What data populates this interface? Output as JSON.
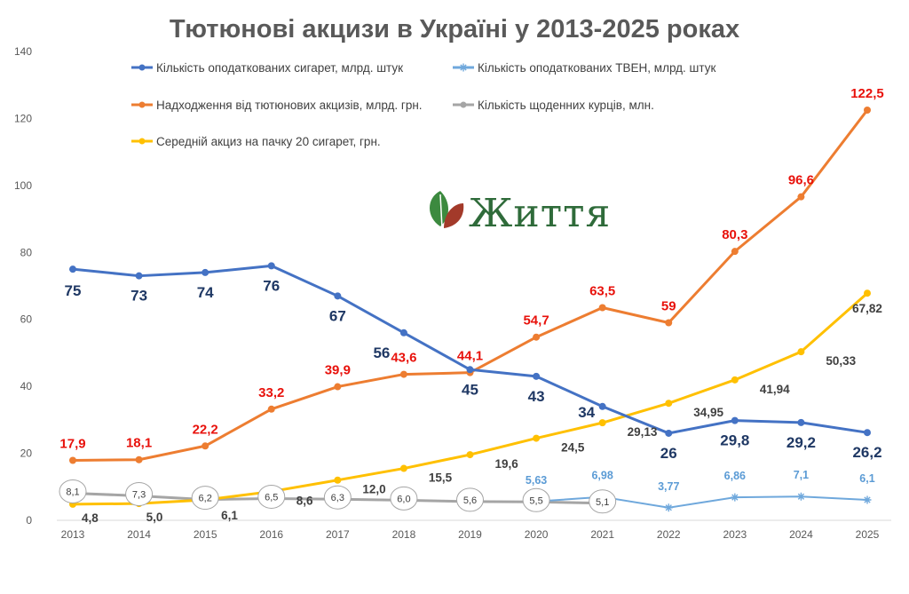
{
  "chart_data": {
    "type": "line",
    "title": "Тютюнові акцизи в Україні у 2013-2025 роках",
    "xlabel": "",
    "ylabel": "",
    "ylim": [
      0,
      140
    ],
    "yticks": [
      0,
      20,
      40,
      60,
      80,
      100,
      120,
      140
    ],
    "categories": [
      "2013",
      "2014",
      "2015",
      "2016",
      "2017",
      "2018",
      "2019",
      "2020",
      "2021",
      "2022",
      "2023",
      "2024",
      "2025"
    ],
    "legend_position": "top-left",
    "grid": false,
    "logo_text": "Життя",
    "series": [
      {
        "name": "Кількість оподаткованих сигарет, млрд. штук",
        "color": "#4472c4",
        "label_color": "#1f3864",
        "marker": "circle",
        "values": [
          75,
          73,
          74,
          76,
          67,
          56,
          45,
          43,
          34,
          26,
          29.8,
          29.2,
          26.2
        ],
        "labels": [
          "75",
          "73",
          "74",
          "76",
          "67",
          "56",
          "45",
          "43",
          "34",
          "26",
          "29,8",
          "29,2",
          "26,2"
        ]
      },
      {
        "name": "Кількість оподаткованих ТВЕН, млрд. штук",
        "color": "#6fa8dc",
        "label_color": "#5b9bd5",
        "marker": "star",
        "values": [
          null,
          null,
          null,
          null,
          null,
          null,
          null,
          5.63,
          6.98,
          3.77,
          6.86,
          7.1,
          6.1
        ],
        "labels": [
          null,
          null,
          null,
          null,
          null,
          null,
          null,
          "5,63",
          "6,98",
          "3,77",
          "6,86",
          "7,1",
          "6,1"
        ]
      },
      {
        "name": "Надходження від тютюнових акцизів, млрд. грн.",
        "color": "#ed7d31",
        "label_color": "#e8120c",
        "marker": "circle",
        "values": [
          17.9,
          18.1,
          22.2,
          33.2,
          39.9,
          43.6,
          44.1,
          54.7,
          63.5,
          59,
          80.3,
          96.6,
          122.5
        ],
        "labels": [
          "17,9",
          "18,1",
          "22,2",
          "33,2",
          "39,9",
          "43,6",
          "44,1",
          "54,7",
          "63,5",
          "59",
          "80,3",
          "96,6",
          "122,5"
        ]
      },
      {
        "name": "Кількість щоденних курців, млн.",
        "color": "#a5a5a5",
        "label_color": "#404040",
        "marker": "circle",
        "values": [
          8.1,
          7.3,
          6.2,
          6.5,
          6.3,
          6.0,
          5.6,
          5.5,
          5.1,
          null,
          null,
          null,
          null
        ],
        "labels": [
          "8,1",
          "7,3",
          "6,2",
          "6,5",
          "6,3",
          "6,0",
          "5,6",
          "5,5",
          "5,1",
          null,
          null,
          null,
          null
        ]
      },
      {
        "name": "Середній акциз на пачку 20 сигарет, грн.",
        "color": "#ffc000",
        "label_color": "#404040",
        "marker": "circle",
        "values": [
          4.8,
          5.0,
          6.1,
          8.6,
          12.0,
          15.5,
          19.6,
          24.5,
          29.13,
          34.95,
          41.94,
          50.33,
          67.82
        ],
        "labels": [
          "4,8",
          "5,0",
          "6,1",
          "8,6",
          "12,0",
          "15,5",
          "19,6",
          "24,5",
          "29,13",
          "34,95",
          "41,94",
          "50,33",
          "67,82"
        ]
      }
    ]
  }
}
